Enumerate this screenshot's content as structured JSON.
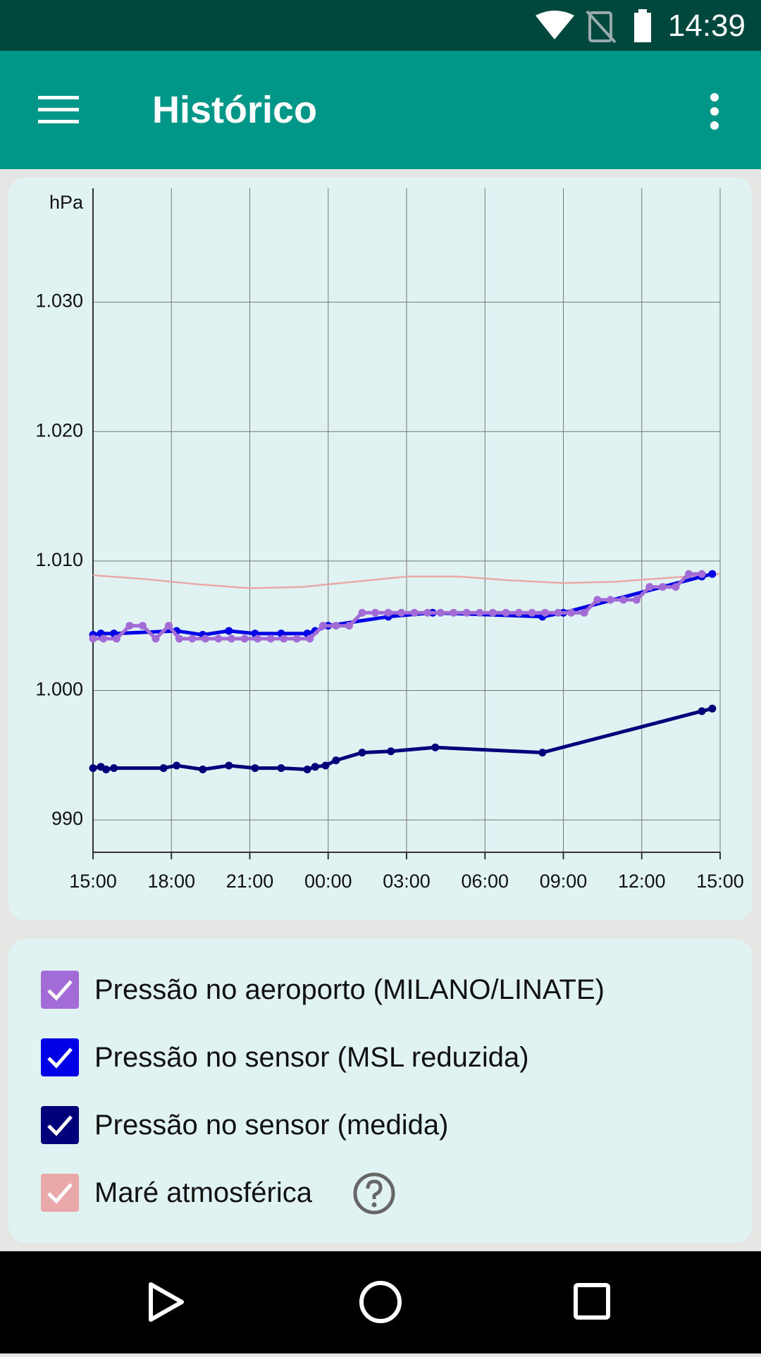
{
  "status_bar": {
    "time": "14:39"
  },
  "app_bar": {
    "title": "Histórico"
  },
  "chart_data": {
    "type": "line",
    "y_label": "hPa",
    "grid": true,
    "xlim": [
      0,
      24
    ],
    "xticks": [
      {
        "value": 0,
        "label": "15:00"
      },
      {
        "value": 3,
        "label": "18:00"
      },
      {
        "value": 6,
        "label": "21:00"
      },
      {
        "value": 9,
        "label": "00:00"
      },
      {
        "value": 12,
        "label": "03:00"
      },
      {
        "value": 15,
        "label": "06:00"
      },
      {
        "value": 18,
        "label": "09:00"
      },
      {
        "value": 21,
        "label": "12:00"
      },
      {
        "value": 24,
        "label": "15:00"
      }
    ],
    "ylim": [
      987.5,
      1038.8
    ],
    "yticks": [
      {
        "value": 1030,
        "label": "1.030"
      },
      {
        "value": 1020,
        "label": "1.020"
      },
      {
        "value": 1010,
        "label": "1.010"
      },
      {
        "value": 1000,
        "label": "1.000"
      },
      990
    ],
    "series": [
      {
        "name": "Pressão no aeroporto (MILANO/LINATE)",
        "color": "#a36bd6",
        "markers": true,
        "x": [
          0,
          0.4,
          0.9,
          1.4,
          1.9,
          2.4,
          2.9,
          3.3,
          3.8,
          4.3,
          4.8,
          5.3,
          5.8,
          6.3,
          6.8,
          7.3,
          7.8,
          8.3,
          8.8,
          9.3,
          9.8,
          10.3,
          10.8,
          11.3,
          11.8,
          12.3,
          12.8,
          13.3,
          13.8,
          14.3,
          14.8,
          15.3,
          15.8,
          16.3,
          16.8,
          17.3,
          17.8,
          18.3,
          18.8,
          19.3,
          19.8,
          20.3,
          20.8,
          21.3,
          21.8,
          22.3,
          22.8,
          23.3
        ],
        "values": [
          1004,
          1004,
          1004,
          1005,
          1005,
          1004,
          1005,
          1004,
          1004,
          1004,
          1004,
          1004,
          1004,
          1004,
          1004,
          1004,
          1004,
          1004,
          1005,
          1005,
          1005,
          1006,
          1006,
          1006,
          1006,
          1006,
          1006,
          1006,
          1006,
          1006,
          1006,
          1006,
          1006,
          1006,
          1006,
          1006,
          1006,
          1006,
          1006,
          1007,
          1007,
          1007,
          1007,
          1008,
          1008,
          1008,
          1009,
          1009
        ]
      },
      {
        "name": "Pressão no sensor (MSL reduzida)",
        "color": "#0000e6",
        "markers": true,
        "x": [
          0,
          0.3,
          0.8,
          3.2,
          4.2,
          5.2,
          6.2,
          7.2,
          8.2,
          8.5,
          9.0,
          11.3,
          13.0,
          17.2,
          18.0,
          23.3,
          23.7
        ],
        "values": [
          1004.3,
          1004.4,
          1004.4,
          1004.6,
          1004.3,
          1004.6,
          1004.4,
          1004.4,
          1004.4,
          1004.6,
          1005.0,
          1005.7,
          1006.0,
          1005.7,
          1006.0,
          1008.8,
          1009.0
        ]
      },
      {
        "name": "Pressão no sensor (medida)",
        "color": "#00007a",
        "markers": true,
        "x": [
          0,
          0.3,
          0.5,
          0.8,
          2.7,
          3.2,
          4.2,
          5.2,
          6.2,
          7.2,
          8.2,
          8.5,
          8.9,
          9.3,
          10.3,
          11.4,
          13.1,
          17.2,
          23.3,
          23.7
        ],
        "values": [
          994.0,
          994.1,
          993.9,
          994.0,
          994.0,
          994.2,
          993.9,
          994.2,
          994.0,
          994.0,
          993.9,
          994.1,
          994.2,
          994.6,
          995.2,
          995.3,
          995.6,
          995.2,
          998.4,
          998.6
        ]
      },
      {
        "name": "Maré atmosférica",
        "color": "#eaa9a9",
        "markers": false,
        "x": [
          0,
          2,
          4,
          6,
          8,
          10,
          12,
          14,
          16,
          18,
          20,
          22,
          24
        ],
        "values": [
          1008.9,
          1008.6,
          1008.2,
          1007.9,
          1008.0,
          1008.4,
          1008.8,
          1008.8,
          1008.5,
          1008.3,
          1008.4,
          1008.7,
          1009.0
        ]
      }
    ]
  }
}
